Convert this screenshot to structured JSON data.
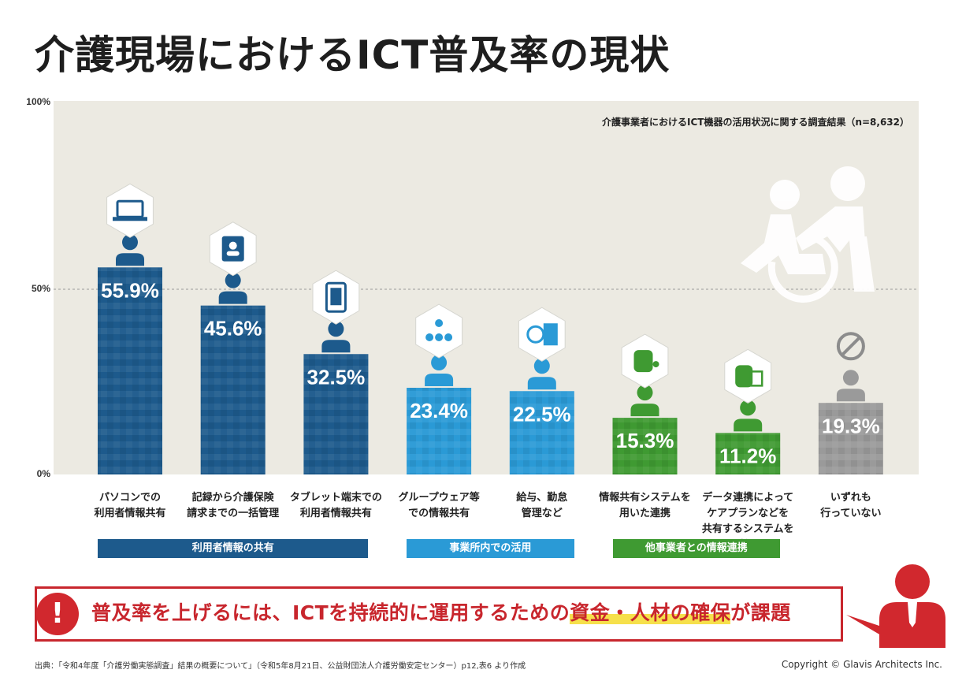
{
  "title": "介護現場におけるICT普及率の現状",
  "subtitle": "介護事業者におけるICT機器の活用状況に関する調査結果（n=8,632）",
  "chart_data": {
    "type": "bar",
    "ylim": [
      0,
      100
    ],
    "ytick_labels": [
      "100%",
      "50%",
      "0%"
    ],
    "gridline_at": 50,
    "categories": [
      "パソコンでの\n利用者情報共有",
      "記録から介護保険\n請求までの一括管理",
      "タブレット端末での\n利用者情報共有",
      "グループウェア等\nでの情報共有",
      "給与、勤怠\n管理など",
      "情報共有システムを\n用いた連携",
      "データ連携によって\nケアプランなどを\n共有するシステムを利用",
      "いずれも\n行っていない"
    ],
    "values": [
      55.9,
      45.6,
      32.5,
      23.4,
      22.5,
      15.3,
      11.2,
      19.3
    ],
    "value_labels": [
      "55.9%",
      "45.6%",
      "32.5%",
      "23.4%",
      "22.5%",
      "15.3%",
      "11.2%",
      "19.3%"
    ],
    "bar_groups": [
      "g1",
      "g1",
      "g1",
      "g2",
      "g2",
      "g3",
      "g3",
      "none"
    ],
    "icons": [
      "laptop-icon",
      "id-card-icon",
      "tablet-icon",
      "network-icon",
      "calculator-icon",
      "database-share-icon",
      "database-edit-icon",
      "no-sign-icon"
    ],
    "groups": [
      {
        "id": "g1",
        "label": "利用者情報の共有",
        "color": "#1d5a8c"
      },
      {
        "id": "g2",
        "label": "事業所内での活用",
        "color": "#2a9ad6"
      },
      {
        "id": "g3",
        "label": "他事業者との情報連携",
        "color": "#3f9a32"
      }
    ],
    "colors": {
      "g1": "#1d5a8c",
      "g2": "#2a9ad6",
      "g3": "#3f9a32",
      "none": "#9a9a9a"
    }
  },
  "callout": {
    "mark": "!",
    "text_before": "普及率を上げるには、ICTを持続的に運用するための",
    "text_highlight": "資金・人材の確保",
    "text_after": "が課題"
  },
  "source": "出典：「令和4年度「介護労働実態調査」結果の概要について」（令和5年8月21日、公益財団法人介護労働安定センター）p12,表6 より作成",
  "copyright": "Copyright © Glavis Architects Inc."
}
